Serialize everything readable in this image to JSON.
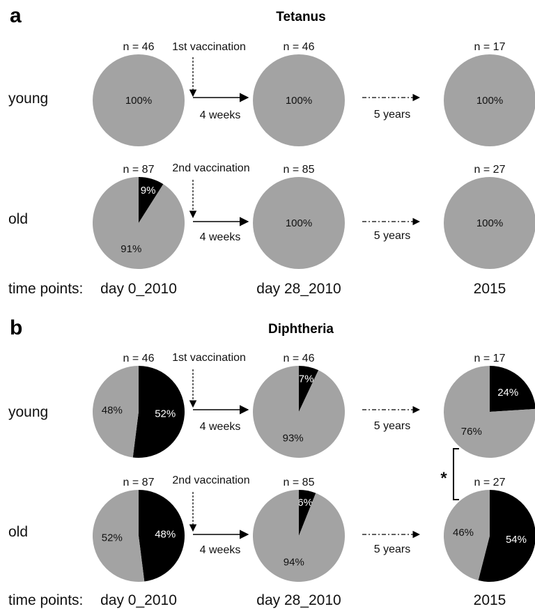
{
  "chart_data": [
    {
      "type": "pie",
      "panel": "a",
      "title": "Tetanus",
      "rows": [
        "young",
        "old"
      ],
      "time_points_label": "time points:",
      "columns": [
        "day 0_2010",
        "day 28_2010",
        "2015"
      ],
      "vaccination_labels": [
        "1st vaccination",
        "2nd vaccination"
      ],
      "interval_labels": [
        "4 weeks",
        "5 years"
      ],
      "colors": {
        "gray": "#a3a3a3",
        "black": "#000000"
      },
      "pies": [
        {
          "row": "young",
          "column": "day 0_2010",
          "n_label": "n = 46",
          "slices": [
            {
              "color": "gray",
              "value": 100,
              "label": "100%"
            }
          ]
        },
        {
          "row": "young",
          "column": "day 28_2010",
          "n_label": "n = 46",
          "slices": [
            {
              "color": "gray",
              "value": 100,
              "label": "100%"
            }
          ]
        },
        {
          "row": "young",
          "column": "2015",
          "n_label": "n = 17",
          "slices": [
            {
              "color": "gray",
              "value": 100,
              "label": "100%"
            }
          ]
        },
        {
          "row": "old",
          "column": "day 0_2010",
          "n_label": "n = 87",
          "slices": [
            {
              "color": "black",
              "value": 9,
              "label": "9%"
            },
            {
              "color": "gray",
              "value": 91,
              "label": "91%"
            }
          ]
        },
        {
          "row": "old",
          "column": "day 28_2010",
          "n_label": "n = 85",
          "slices": [
            {
              "color": "gray",
              "value": 100,
              "label": "100%"
            }
          ]
        },
        {
          "row": "old",
          "column": "2015",
          "n_label": "n = 27",
          "slices": [
            {
              "color": "gray",
              "value": 100,
              "label": "100%"
            }
          ]
        }
      ]
    },
    {
      "type": "pie",
      "panel": "b",
      "title": "Diphtheria",
      "rows": [
        "young",
        "old"
      ],
      "time_points_label": "time points:",
      "columns": [
        "day 0_2010",
        "day 28_2010",
        "2015"
      ],
      "vaccination_labels": [
        "1st vaccination",
        "2nd vaccination"
      ],
      "interval_labels": [
        "4 weeks",
        "5 years"
      ],
      "significance_label": "*",
      "colors": {
        "gray": "#a3a3a3",
        "black": "#000000"
      },
      "pies": [
        {
          "row": "young",
          "column": "day 0_2010",
          "n_label": "n = 46",
          "slices": [
            {
              "color": "black",
              "value": 52,
              "label": "52%"
            },
            {
              "color": "gray",
              "value": 48,
              "label": "48%"
            }
          ]
        },
        {
          "row": "young",
          "column": "day 28_2010",
          "n_label": "n = 46",
          "slices": [
            {
              "color": "black",
              "value": 7,
              "label": "7%"
            },
            {
              "color": "gray",
              "value": 93,
              "label": "93%"
            }
          ]
        },
        {
          "row": "young",
          "column": "2015",
          "n_label": "n = 17",
          "slices": [
            {
              "color": "black",
              "value": 24,
              "label": "24%"
            },
            {
              "color": "gray",
              "value": 76,
              "label": "76%"
            }
          ]
        },
        {
          "row": "old",
          "column": "day 0_2010",
          "n_label": "n = 87",
          "slices": [
            {
              "color": "black",
              "value": 48,
              "label": "48%"
            },
            {
              "color": "gray",
              "value": 52,
              "label": "52%"
            }
          ]
        },
        {
          "row": "old",
          "column": "day 28_2010",
          "n_label": "n = 85",
          "slices": [
            {
              "color": "black",
              "value": 6,
              "label": "6%"
            },
            {
              "color": "gray",
              "value": 94,
              "label": "94%"
            }
          ]
        },
        {
          "row": "old",
          "column": "2015",
          "n_label": "n = 27",
          "slices": [
            {
              "color": "black",
              "value": 54,
              "label": "54%"
            },
            {
              "color": "gray",
              "value": 46,
              "label": "46%"
            }
          ]
        }
      ]
    }
  ]
}
